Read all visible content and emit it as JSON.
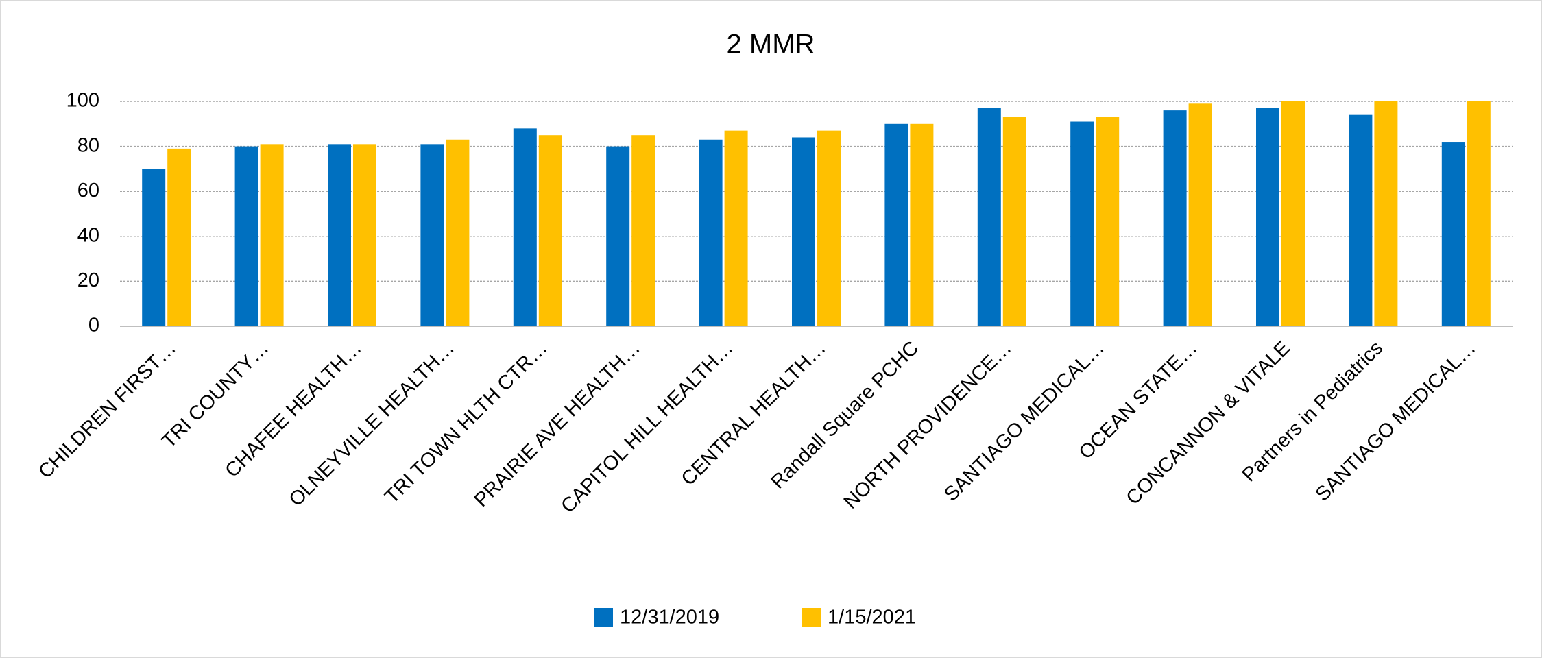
{
  "chart_data": {
    "type": "bar",
    "title": "2 MMR",
    "categories": [
      "CHILDREN FIRST…",
      "TRI COUNTY…",
      "CHAFEE HEALTH…",
      "OLNEYVILLE HEALTH…",
      "TRI TOWN HLTH CTR…",
      "PRAIRIE AVE HEALTH…",
      "CAPITOL HILL HEALTH…",
      "CENTRAL HEALTH…",
      "Randall Square PCHC",
      "NORTH PROVIDENCE…",
      "SANTIAGO MEDICAL…",
      "OCEAN STATE…",
      "CONCANNON & VITALE",
      "Partners in Pediatrics",
      "SANTIAGO MEDICAL…"
    ],
    "series": [
      {
        "name": "12/31/2019",
        "color": "#0070c0",
        "values": [
          70,
          80,
          81,
          81,
          88,
          80,
          83,
          84,
          90,
          97,
          91,
          96,
          97,
          94,
          82
        ]
      },
      {
        "name": "1/15/2021",
        "color": "#ffc000",
        "values": [
          79,
          81,
          81,
          83,
          85,
          85,
          87,
          87,
          90,
          93,
          93,
          99,
          100,
          100,
          100
        ]
      }
    ],
    "ylim": [
      0,
      100
    ],
    "yticks": [
      0,
      20,
      40,
      60,
      80,
      100
    ],
    "grid": true,
    "legend": "bottom"
  }
}
